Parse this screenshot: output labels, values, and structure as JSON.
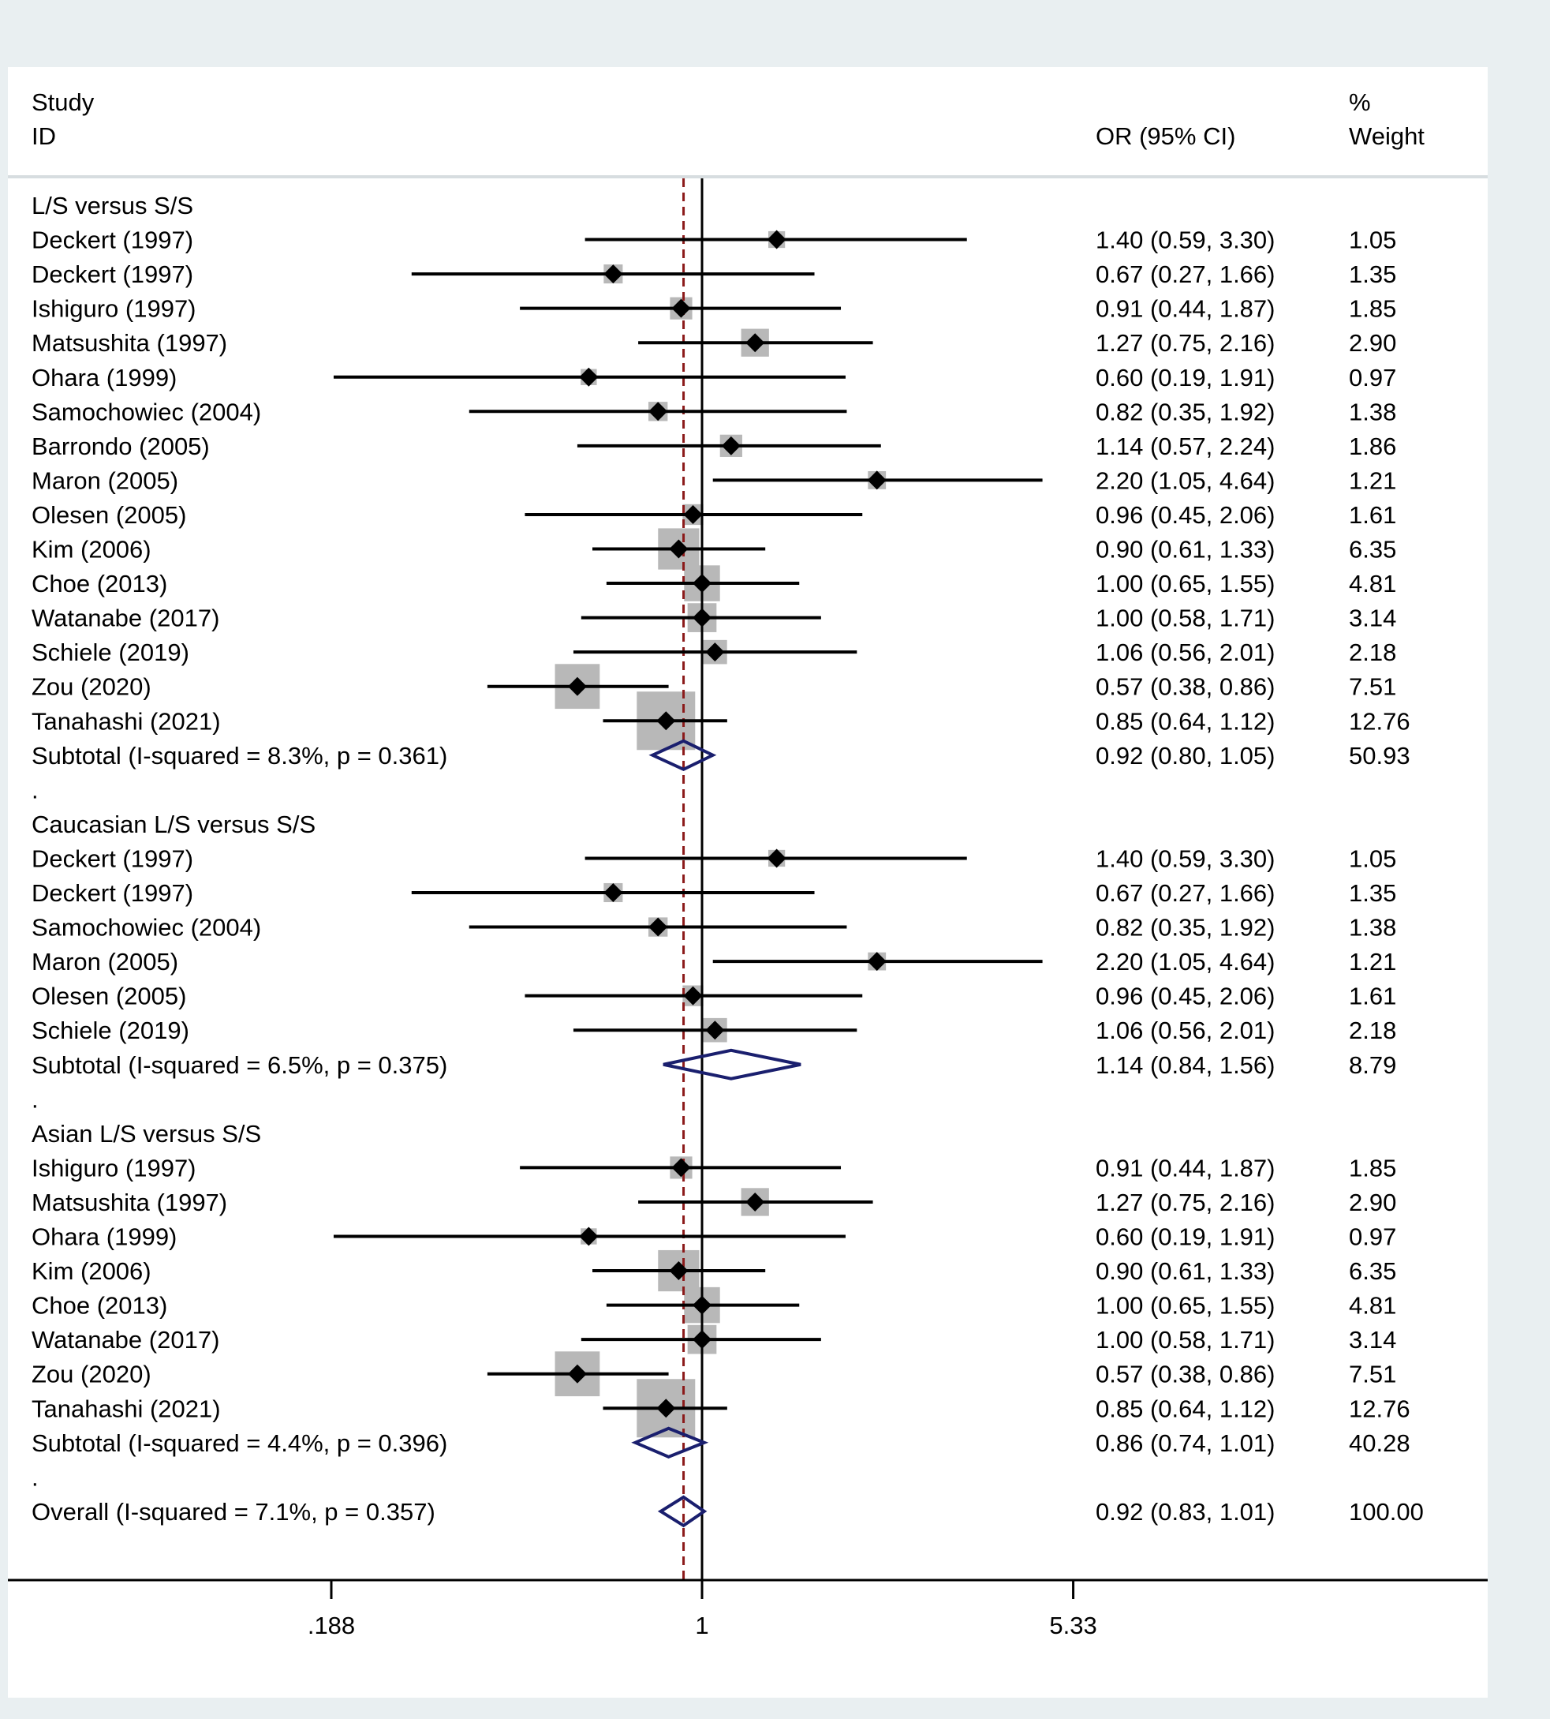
{
  "chart_data": {
    "type": "forest",
    "x_scale": "log",
    "xlim": [
      0.1,
      9.45
    ],
    "x_ticks": [
      {
        "value": 0.188,
        "label": ".188"
      },
      {
        "value": 1,
        "label": "1"
      },
      {
        "value": 5.33,
        "label": "5.33"
      }
    ],
    "reference_line": 1,
    "overall_line": 0.92,
    "headers": {
      "study_1": "Study",
      "study_2": "ID",
      "or": "OR (95% CI)",
      "weight_1": "%",
      "weight_2": "Weight"
    },
    "rows": [
      {
        "kind": "heading",
        "label": "L/S versus S/S"
      },
      {
        "kind": "study",
        "label": "Deckert (1997)",
        "or": 1.4,
        "lo": 0.59,
        "hi": 3.3,
        "ci_text": "1.40 (0.59, 3.30)",
        "weight": 1.05,
        "weight_text": "1.05"
      },
      {
        "kind": "study",
        "label": "Deckert (1997)",
        "or": 0.67,
        "lo": 0.27,
        "hi": 1.66,
        "ci_text": "0.67 (0.27, 1.66)",
        "weight": 1.35,
        "weight_text": "1.35"
      },
      {
        "kind": "study",
        "label": "Ishiguro (1997)",
        "or": 0.91,
        "lo": 0.44,
        "hi": 1.87,
        "ci_text": "0.91 (0.44, 1.87)",
        "weight": 1.85,
        "weight_text": "1.85"
      },
      {
        "kind": "study",
        "label": "Matsushita (1997)",
        "or": 1.27,
        "lo": 0.75,
        "hi": 2.16,
        "ci_text": "1.27 (0.75, 2.16)",
        "weight": 2.9,
        "weight_text": "2.90"
      },
      {
        "kind": "study",
        "label": "Ohara (1999)",
        "or": 0.6,
        "lo": 0.19,
        "hi": 1.91,
        "ci_text": "0.60 (0.19, 1.91)",
        "weight": 0.97,
        "weight_text": "0.97"
      },
      {
        "kind": "study",
        "label": "Samochowiec (2004)",
        "or": 0.82,
        "lo": 0.35,
        "hi": 1.92,
        "ci_text": "0.82 (0.35, 1.92)",
        "weight": 1.38,
        "weight_text": "1.38"
      },
      {
        "kind": "study",
        "label": "Barrondo (2005)",
        "or": 1.14,
        "lo": 0.57,
        "hi": 2.24,
        "ci_text": "1.14 (0.57, 2.24)",
        "weight": 1.86,
        "weight_text": "1.86"
      },
      {
        "kind": "study",
        "label": "Maron (2005)",
        "or": 2.2,
        "lo": 1.05,
        "hi": 4.64,
        "ci_text": "2.20 (1.05, 4.64)",
        "weight": 1.21,
        "weight_text": "1.21"
      },
      {
        "kind": "study",
        "label": "Olesen (2005)",
        "or": 0.96,
        "lo": 0.45,
        "hi": 2.06,
        "ci_text": "0.96 (0.45, 2.06)",
        "weight": 1.61,
        "weight_text": "1.61"
      },
      {
        "kind": "study",
        "label": "Kim (2006)",
        "or": 0.9,
        "lo": 0.61,
        "hi": 1.33,
        "ci_text": "0.90 (0.61, 1.33)",
        "weight": 6.35,
        "weight_text": "6.35"
      },
      {
        "kind": "study",
        "label": "Choe (2013)",
        "or": 1.0,
        "lo": 0.65,
        "hi": 1.55,
        "ci_text": "1.00 (0.65, 1.55)",
        "weight": 4.81,
        "weight_text": "4.81"
      },
      {
        "kind": "study",
        "label": "Watanabe (2017)",
        "or": 1.0,
        "lo": 0.58,
        "hi": 1.71,
        "ci_text": "1.00 (0.58, 1.71)",
        "weight": 3.14,
        "weight_text": "3.14"
      },
      {
        "kind": "study",
        "label": "Schiele (2019)",
        "or": 1.06,
        "lo": 0.56,
        "hi": 2.01,
        "ci_text": "1.06 (0.56, 2.01)",
        "weight": 2.18,
        "weight_text": "2.18"
      },
      {
        "kind": "study",
        "label": "Zou (2020)",
        "or": 0.57,
        "lo": 0.38,
        "hi": 0.86,
        "ci_text": "0.57 (0.38, 0.86)",
        "weight": 7.51,
        "weight_text": "7.51"
      },
      {
        "kind": "study",
        "label": "Tanahashi (2021)",
        "or": 0.85,
        "lo": 0.64,
        "hi": 1.12,
        "ci_text": "0.85 (0.64, 1.12)",
        "weight": 12.76,
        "weight_text": "12.76"
      },
      {
        "kind": "subtotal",
        "label": "Subtotal  (I-squared = 8.3%, p = 0.361)",
        "or": 0.92,
        "lo": 0.8,
        "hi": 1.05,
        "ci_text": "0.92 (0.80, 1.05)",
        "weight": 50.93,
        "weight_text": "50.93"
      },
      {
        "kind": "spacer",
        "label": "."
      },
      {
        "kind": "heading",
        "label": "Caucasian L/S versus S/S"
      },
      {
        "kind": "study",
        "label": "Deckert (1997)",
        "or": 1.4,
        "lo": 0.59,
        "hi": 3.3,
        "ci_text": "1.40 (0.59, 3.30)",
        "weight": 1.05,
        "weight_text": "1.05"
      },
      {
        "kind": "study",
        "label": "Deckert (1997)",
        "or": 0.67,
        "lo": 0.27,
        "hi": 1.66,
        "ci_text": "0.67 (0.27, 1.66)",
        "weight": 1.35,
        "weight_text": "1.35"
      },
      {
        "kind": "study",
        "label": "Samochowiec (2004)",
        "or": 0.82,
        "lo": 0.35,
        "hi": 1.92,
        "ci_text": "0.82 (0.35, 1.92)",
        "weight": 1.38,
        "weight_text": "1.38"
      },
      {
        "kind": "study",
        "label": "Maron (2005)",
        "or": 2.2,
        "lo": 1.05,
        "hi": 4.64,
        "ci_text": "2.20 (1.05, 4.64)",
        "weight": 1.21,
        "weight_text": "1.21"
      },
      {
        "kind": "study",
        "label": "Olesen (2005)",
        "or": 0.96,
        "lo": 0.45,
        "hi": 2.06,
        "ci_text": "0.96 (0.45, 2.06)",
        "weight": 1.61,
        "weight_text": "1.61"
      },
      {
        "kind": "study",
        "label": "Schiele (2019)",
        "or": 1.06,
        "lo": 0.56,
        "hi": 2.01,
        "ci_text": "1.06 (0.56, 2.01)",
        "weight": 2.18,
        "weight_text": "2.18"
      },
      {
        "kind": "subtotal",
        "label": "Subtotal  (I-squared = 6.5%, p = 0.375)",
        "or": 1.14,
        "lo": 0.84,
        "hi": 1.56,
        "ci_text": "1.14 (0.84, 1.56)",
        "weight": 8.79,
        "weight_text": "8.79"
      },
      {
        "kind": "spacer",
        "label": "."
      },
      {
        "kind": "heading",
        "label": "Asian L/S versus S/S"
      },
      {
        "kind": "study",
        "label": "Ishiguro (1997)",
        "or": 0.91,
        "lo": 0.44,
        "hi": 1.87,
        "ci_text": "0.91 (0.44, 1.87)",
        "weight": 1.85,
        "weight_text": "1.85"
      },
      {
        "kind": "study",
        "label": "Matsushita (1997)",
        "or": 1.27,
        "lo": 0.75,
        "hi": 2.16,
        "ci_text": "1.27 (0.75, 2.16)",
        "weight": 2.9,
        "weight_text": "2.90"
      },
      {
        "kind": "study",
        "label": "Ohara (1999)",
        "or": 0.6,
        "lo": 0.19,
        "hi": 1.91,
        "ci_text": "0.60 (0.19, 1.91)",
        "weight": 0.97,
        "weight_text": "0.97"
      },
      {
        "kind": "study",
        "label": "Kim (2006)",
        "or": 0.9,
        "lo": 0.61,
        "hi": 1.33,
        "ci_text": "0.90 (0.61, 1.33)",
        "weight": 6.35,
        "weight_text": "6.35"
      },
      {
        "kind": "study",
        "label": "Choe (2013)",
        "or": 1.0,
        "lo": 0.65,
        "hi": 1.55,
        "ci_text": "1.00 (0.65, 1.55)",
        "weight": 4.81,
        "weight_text": "4.81"
      },
      {
        "kind": "study",
        "label": "Watanabe (2017)",
        "or": 1.0,
        "lo": 0.58,
        "hi": 1.71,
        "ci_text": "1.00 (0.58, 1.71)",
        "weight": 3.14,
        "weight_text": "3.14"
      },
      {
        "kind": "study",
        "label": "Zou (2020)",
        "or": 0.57,
        "lo": 0.38,
        "hi": 0.86,
        "ci_text": "0.57 (0.38, 0.86)",
        "weight": 7.51,
        "weight_text": "7.51"
      },
      {
        "kind": "study",
        "label": "Tanahashi (2021)",
        "or": 0.85,
        "lo": 0.64,
        "hi": 1.12,
        "ci_text": "0.85 (0.64, 1.12)",
        "weight": 12.76,
        "weight_text": "12.76"
      },
      {
        "kind": "subtotal",
        "label": "Subtotal  (I-squared = 4.4%, p = 0.396)",
        "or": 0.86,
        "lo": 0.74,
        "hi": 1.01,
        "ci_text": "0.86 (0.74, 1.01)",
        "weight": 40.28,
        "weight_text": "40.28"
      },
      {
        "kind": "spacer",
        "label": "."
      },
      {
        "kind": "overall",
        "label": "Overall  (I-squared = 7.1%, p = 0.357)",
        "or": 0.92,
        "lo": 0.83,
        "hi": 1.01,
        "ci_text": "0.92 (0.83, 1.01)",
        "weight": 100.0,
        "weight_text": "100.00"
      }
    ],
    "colors": {
      "page_background": "#e9eff1",
      "plot_background": "#ffffff",
      "box": "#b8b8b8",
      "diamond": "#1a1f6e",
      "overall_line": "#8b1a1a",
      "ink": "#000000",
      "separator": "#d7dde0"
    }
  }
}
